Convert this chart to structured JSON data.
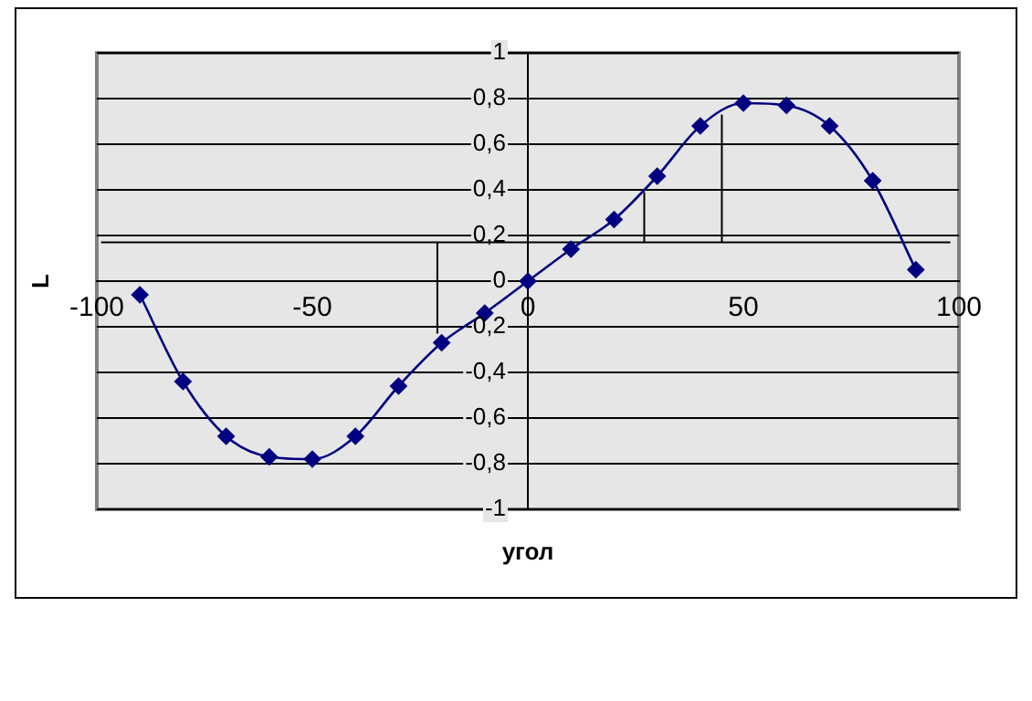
{
  "chart_data": {
    "type": "line",
    "xlabel": "угол",
    "ylabel": "L",
    "xlim": [
      -100,
      100
    ],
    "xticks": [
      -100,
      -50,
      0,
      50,
      100
    ],
    "ylim": [
      -1,
      1
    ],
    "yticks": [
      {
        "value": -1,
        "label": "-1"
      },
      {
        "value": -0.8,
        "label": "-0,8"
      },
      {
        "value": -0.6,
        "label": "-0,6"
      },
      {
        "value": -0.4,
        "label": "-0,4"
      },
      {
        "value": -0.2,
        "label": "-0,2"
      },
      {
        "value": 0,
        "label": "0"
      },
      {
        "value": 0.2,
        "label": "0,2"
      },
      {
        "value": 0.4,
        "label": "0,4"
      },
      {
        "value": 0.6,
        "label": "0,6"
      },
      {
        "value": 0.8,
        "label": "0,8"
      },
      {
        "value": 1,
        "label": "1"
      }
    ],
    "grid": "y",
    "legend": false,
    "marker": "diamond",
    "line_style": "solid",
    "series": [
      {
        "color": "#000080",
        "x": [
          -90,
          -80,
          -70,
          -60,
          -50,
          -40,
          -30,
          -20,
          -10,
          0,
          10,
          20,
          30,
          40,
          50,
          60,
          70,
          80,
          90
        ],
        "values": [
          -0.06,
          -0.44,
          -0.68,
          -0.77,
          -0.78,
          -0.68,
          -0.46,
          -0.27,
          -0.14,
          0,
          0.14,
          0.27,
          0.46,
          0.68,
          0.78,
          0.77,
          0.68,
          0.44,
          0.05
        ]
      },
      {
        "color": "#000000",
        "marker": "none",
        "x": [
          -99,
          98
        ],
        "values": [
          0.17,
          0.17
        ]
      },
      {
        "color": "#000000",
        "marker": "none",
        "x": [
          -21,
          -21
        ],
        "values": [
          0.17,
          -0.23
        ]
      },
      {
        "color": "#000000",
        "marker": "none",
        "x": [
          27,
          27
        ],
        "values": [
          0.17,
          0.39
        ]
      },
      {
        "color": "#000000",
        "marker": "none",
        "x": [
          45,
          45
        ],
        "values": [
          0.17,
          0.73
        ]
      }
    ]
  }
}
